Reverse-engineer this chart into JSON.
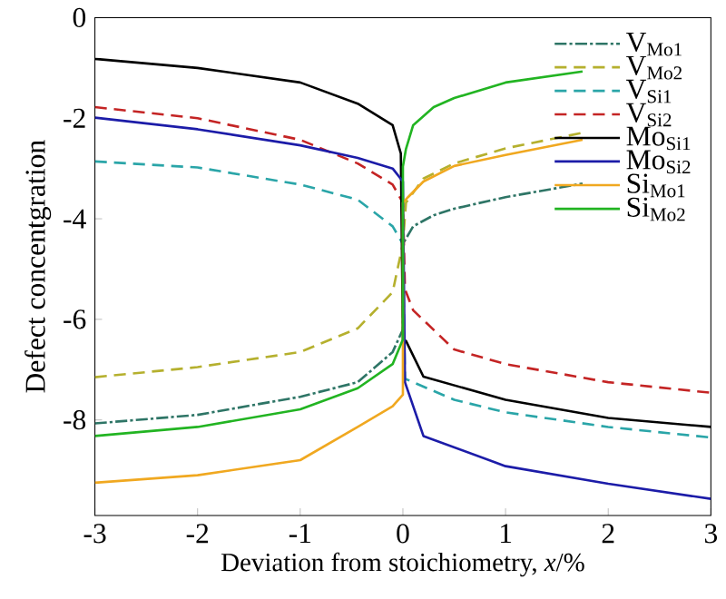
{
  "chart_data": {
    "type": "line",
    "xlabel": "Deviation from stoichiometry, *x*/%",
    "ylabel": "Defect concentgration",
    "xlim": [
      -3,
      3
    ],
    "xticks": [
      -3,
      -2,
      -1,
      0,
      1,
      2,
      3
    ],
    "ylim": [
      -9.9,
      0
    ],
    "yticks": [
      -8,
      -6,
      -4,
      -2,
      0
    ],
    "grid": false,
    "legend": "top right",
    "marker": "none",
    "series": [
      {
        "name": "V$_{Mo1}$",
        "color": "#2e7566",
        "line_style": "dashdot",
        "x": [
          -3,
          -2,
          -1,
          -0.44,
          -0.1,
          0,
          0,
          0.1,
          0.3,
          0.5,
          1,
          1.75
        ],
        "values": [
          -8.07,
          -7.9,
          -7.54,
          -7.25,
          -6.65,
          -6.2,
          -4.5,
          -4.15,
          -3.93,
          -3.8,
          -3.57,
          -3.3
        ]
      },
      {
        "name": "V$_{Mo2}$",
        "color": "#b5b02e",
        "line_style": "dashed",
        "x": [
          -3,
          -2,
          -1,
          -0.44,
          -0.1,
          0,
          0.03,
          0.2,
          0.5,
          1,
          1.75
        ],
        "values": [
          -7.15,
          -6.95,
          -6.65,
          -6.18,
          -5.46,
          -4.5,
          -3.68,
          -3.2,
          -2.9,
          -2.6,
          -2.29
        ]
      },
      {
        "name": "V$_{Si1}$",
        "color": "#2aa5a8",
        "line_style": "dashed",
        "x": [
          -3,
          -2,
          -1,
          -0.44,
          -0.1,
          0,
          0.02,
          0.5,
          1,
          2,
          3
        ],
        "values": [
          -2.86,
          -2.98,
          -3.32,
          -3.62,
          -4.15,
          -4.5,
          -7.18,
          -7.6,
          -7.85,
          -8.14,
          -8.35
        ]
      },
      {
        "name": "V$_{Si2}$",
        "color": "#c42424",
        "line_style": "dashed",
        "x": [
          -3,
          -2,
          -1,
          -0.44,
          -0.1,
          0,
          0.02,
          0.1,
          0.5,
          1,
          2,
          3
        ],
        "values": [
          -1.78,
          -2.0,
          -2.43,
          -2.9,
          -3.32,
          -3.68,
          -5.4,
          -5.82,
          -6.6,
          -6.89,
          -7.25,
          -7.46
        ]
      },
      {
        "name": "Mo$_{Si1}$",
        "color": "#000000",
        "line_style": "solid",
        "x": [
          -3,
          -2,
          -1,
          -0.44,
          -0.1,
          -0.02,
          0,
          0.03,
          0.2,
          1,
          2,
          3
        ],
        "values": [
          -0.82,
          -1.0,
          -1.29,
          -1.71,
          -2.14,
          -2.7,
          -6.4,
          -6.43,
          -7.14,
          -7.6,
          -7.96,
          -8.14
        ]
      },
      {
        "name": "Mo$_{Si2}$",
        "color": "#1c1ca8",
        "line_style": "solid",
        "x": [
          -3,
          -2,
          -1,
          -0.44,
          -0.1,
          0,
          0.02,
          0.2,
          1,
          2,
          3
        ],
        "values": [
          -1.99,
          -2.22,
          -2.54,
          -2.79,
          -3.0,
          -3.26,
          -7.25,
          -8.32,
          -8.92,
          -9.27,
          -9.57
        ]
      },
      {
        "name": "Si$_{Mo1}$",
        "color": "#f0a820",
        "line_style": "solid",
        "x": [
          -3,
          -2,
          -1,
          -0.44,
          -0.1,
          0,
          0,
          0.05,
          0.2,
          0.5,
          1,
          1.75
        ],
        "values": [
          -9.25,
          -9.1,
          -8.8,
          -8.14,
          -7.73,
          -7.5,
          -3.68,
          -3.57,
          -3.26,
          -2.95,
          -2.73,
          -2.43
        ]
      },
      {
        "name": "Si$_{Mo2}$",
        "color": "#22b422",
        "line_style": "solid",
        "x": [
          -3,
          -2,
          -1,
          -0.44,
          -0.1,
          0,
          0,
          0.03,
          0.1,
          0.3,
          0.5,
          1,
          1.75
        ],
        "values": [
          -8.32,
          -8.14,
          -7.79,
          -7.37,
          -6.89,
          -6.4,
          -2.96,
          -2.61,
          -2.14,
          -1.78,
          -1.6,
          -1.29,
          -1.07
        ]
      }
    ]
  }
}
